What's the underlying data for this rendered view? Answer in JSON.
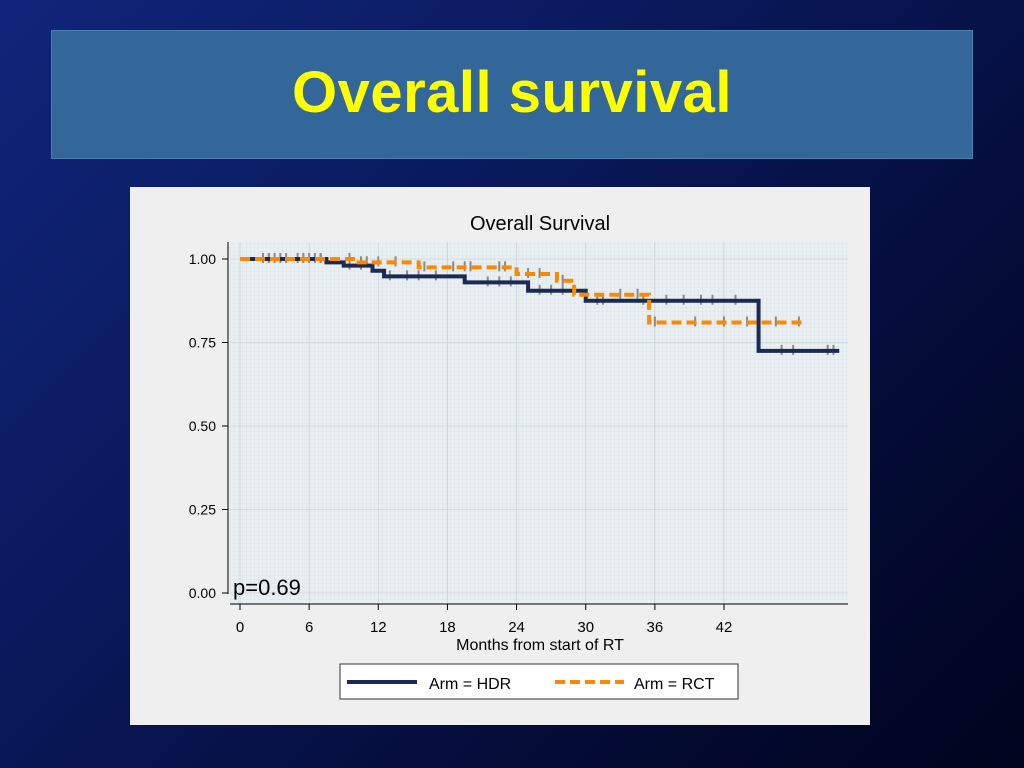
{
  "slide": {
    "title": "Overall survival"
  },
  "colors": {
    "hdr": "#1a2a55",
    "rct": "#ff8800",
    "censor": "#8a8a8a",
    "banner": "#336699",
    "title": "#ffff00"
  },
  "chart_data": {
    "type": "line",
    "subtype": "kaplan-meier step",
    "title": "Overall Survival",
    "xlabel": "Months from start of RT",
    "ylabel": "",
    "xlim": [
      -1,
      53.5
    ],
    "ylim": [
      0,
      1.05
    ],
    "xticks": [
      0,
      6,
      12,
      18,
      24,
      30,
      36,
      42
    ],
    "yticks": [
      "0.00",
      "0.25",
      "0.50",
      "0.75",
      "1.00"
    ],
    "annotation": "p=0.69",
    "grid": true,
    "legend_position": "bottom",
    "series": [
      {
        "name": "Arm = HDR",
        "style": "solid",
        "x": [
          0,
          7.5,
          9,
          11.5,
          12.5,
          19.5,
          25,
          30,
          45,
          52
        ],
        "y": [
          1.0,
          0.99,
          0.98,
          0.965,
          0.948,
          0.93,
          0.905,
          0.875,
          0.725,
          0.725
        ],
        "censor_x": [
          2,
          2.5,
          3,
          3.5,
          4,
          5,
          5.5,
          6,
          6.5,
          7,
          9.5,
          10.5,
          13,
          14.5,
          15.5,
          17,
          21.5,
          22.5,
          23.5,
          26,
          27,
          28,
          31,
          31.5,
          35,
          37,
          38.5,
          40,
          41,
          43,
          47,
          48,
          51,
          51.5
        ]
      },
      {
        "name": "Arm = RCT",
        "style": "dashed",
        "x": [
          0,
          10,
          15.5,
          24,
          27.5,
          29,
          35.5,
          49
        ],
        "y": [
          1.0,
          0.99,
          0.975,
          0.955,
          0.935,
          0.893,
          0.81,
          0.81
        ],
        "censor_x": [
          2.5,
          5.5,
          7,
          9.5,
          10.5,
          11,
          12,
          13.5,
          16,
          18.5,
          19.5,
          20,
          22.5,
          23,
          25,
          26,
          28,
          30,
          33,
          34.5,
          36,
          39.5,
          42,
          44,
          46.5,
          48.5
        ]
      }
    ]
  }
}
